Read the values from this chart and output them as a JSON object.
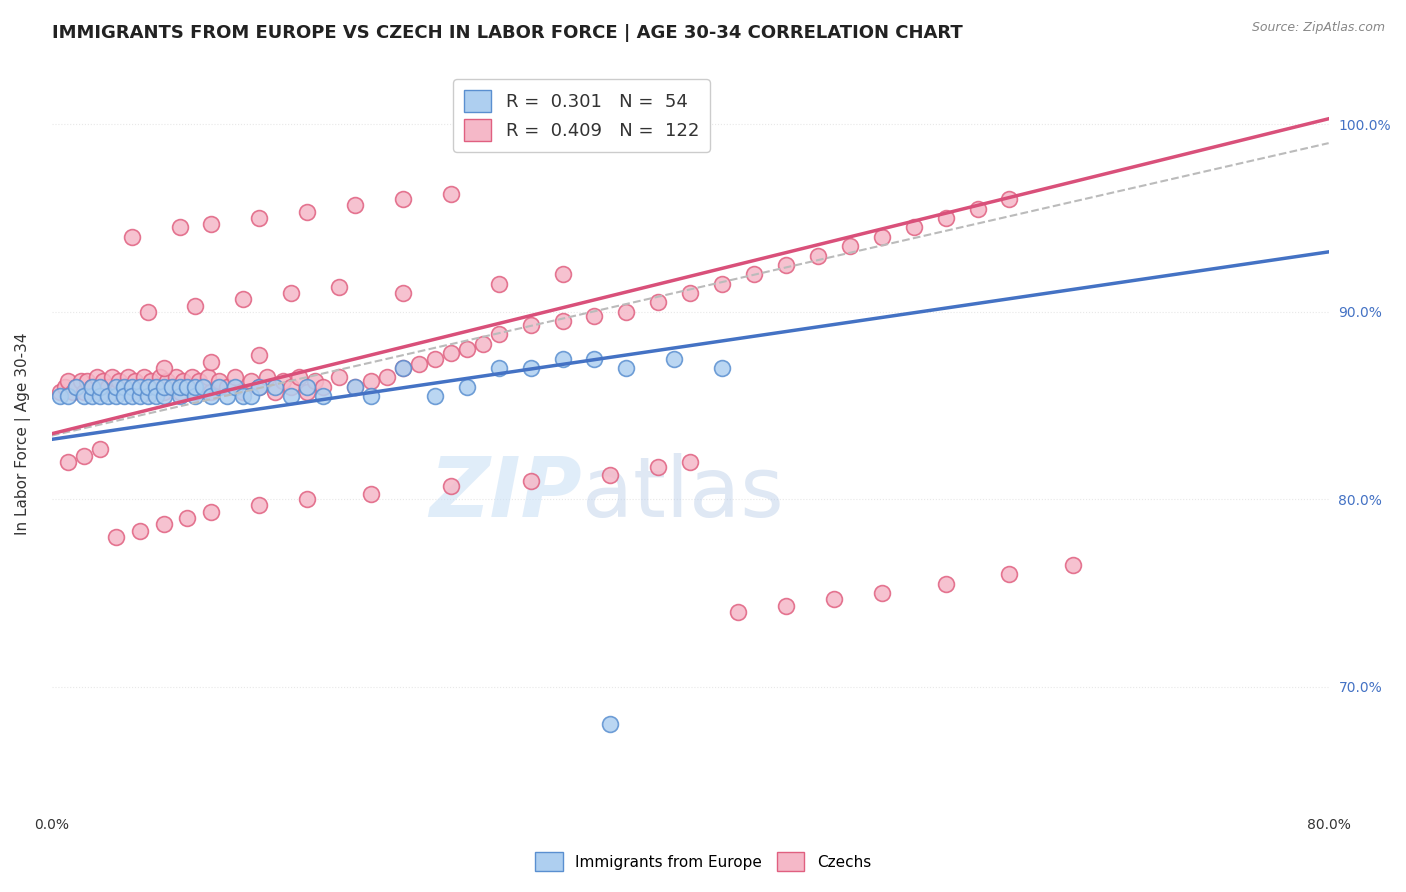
{
  "title": "IMMIGRANTS FROM EUROPE VS CZECH IN LABOR FORCE | AGE 30-34 CORRELATION CHART",
  "source": "Source: ZipAtlas.com",
  "ylabel": "In Labor Force | Age 30-34",
  "xlim": [
    0.0,
    0.8
  ],
  "ylim": [
    0.635,
    1.035
  ],
  "right_yticks": [
    0.7,
    0.8,
    0.9,
    1.0
  ],
  "right_yticklabels": [
    "70.0%",
    "80.0%",
    "90.0%",
    "100.0%"
  ],
  "xticks": [
    0.0,
    0.1,
    0.2,
    0.3,
    0.4,
    0.5,
    0.6,
    0.7,
    0.8
  ],
  "xticklabels": [
    "0.0%",
    "",
    "",
    "",
    "",
    "",
    "",
    "",
    "80.0%"
  ],
  "blue_R": 0.301,
  "blue_N": 54,
  "pink_R": 0.409,
  "pink_N": 122,
  "blue_color": "#aecff0",
  "pink_color": "#f5b8c8",
  "blue_edge_color": "#5a8fd0",
  "pink_edge_color": "#e06080",
  "blue_line_color": "#4472C4",
  "pink_line_color": "#D9507A",
  "background_color": "#ffffff",
  "grid_color": "#e8e8e8",
  "title_fontsize": 13,
  "axis_label_fontsize": 11,
  "tick_fontsize": 10,
  "blue_scatter_x": [
    0.005,
    0.01,
    0.015,
    0.02,
    0.025,
    0.025,
    0.03,
    0.03,
    0.035,
    0.04,
    0.04,
    0.045,
    0.045,
    0.05,
    0.05,
    0.055,
    0.055,
    0.06,
    0.06,
    0.065,
    0.065,
    0.07,
    0.07,
    0.075,
    0.08,
    0.08,
    0.085,
    0.09,
    0.09,
    0.095,
    0.1,
    0.105,
    0.11,
    0.115,
    0.12,
    0.125,
    0.13,
    0.14,
    0.15,
    0.16,
    0.17,
    0.19,
    0.2,
    0.22,
    0.24,
    0.26,
    0.28,
    0.3,
    0.32,
    0.34,
    0.36,
    0.39,
    0.42,
    0.35
  ],
  "blue_scatter_y": [
    0.855,
    0.855,
    0.86,
    0.855,
    0.855,
    0.86,
    0.855,
    0.86,
    0.855,
    0.855,
    0.86,
    0.86,
    0.855,
    0.86,
    0.855,
    0.855,
    0.86,
    0.855,
    0.86,
    0.86,
    0.855,
    0.855,
    0.86,
    0.86,
    0.855,
    0.86,
    0.86,
    0.855,
    0.86,
    0.86,
    0.855,
    0.86,
    0.855,
    0.86,
    0.855,
    0.855,
    0.86,
    0.86,
    0.855,
    0.86,
    0.855,
    0.86,
    0.855,
    0.87,
    0.855,
    0.86,
    0.87,
    0.87,
    0.875,
    0.875,
    0.87,
    0.875,
    0.87,
    0.68
  ],
  "pink_scatter_x": [
    0.005,
    0.008,
    0.01,
    0.013,
    0.015,
    0.018,
    0.02,
    0.022,
    0.025,
    0.028,
    0.03,
    0.032,
    0.035,
    0.038,
    0.04,
    0.042,
    0.045,
    0.048,
    0.05,
    0.052,
    0.055,
    0.058,
    0.06,
    0.062,
    0.065,
    0.068,
    0.07,
    0.072,
    0.075,
    0.078,
    0.08,
    0.082,
    0.085,
    0.088,
    0.09,
    0.092,
    0.095,
    0.098,
    0.1,
    0.105,
    0.11,
    0.115,
    0.12,
    0.125,
    0.13,
    0.135,
    0.14,
    0.145,
    0.15,
    0.155,
    0.16,
    0.165,
    0.17,
    0.18,
    0.19,
    0.2,
    0.21,
    0.22,
    0.23,
    0.24,
    0.25,
    0.26,
    0.27,
    0.28,
    0.3,
    0.32,
    0.34,
    0.36,
    0.38,
    0.4,
    0.42,
    0.44,
    0.46,
    0.48,
    0.5,
    0.52,
    0.54,
    0.56,
    0.58,
    0.6,
    0.05,
    0.08,
    0.1,
    0.13,
    0.16,
    0.19,
    0.22,
    0.25,
    0.06,
    0.09,
    0.12,
    0.15,
    0.18,
    0.07,
    0.1,
    0.13,
    0.22,
    0.28,
    0.32,
    0.04,
    0.055,
    0.07,
    0.085,
    0.1,
    0.13,
    0.16,
    0.2,
    0.25,
    0.3,
    0.35,
    0.38,
    0.4,
    0.43,
    0.46,
    0.49,
    0.52,
    0.56,
    0.6,
    0.64,
    0.01,
    0.02,
    0.03
  ],
  "pink_scatter_y": [
    0.857,
    0.86,
    0.863,
    0.857,
    0.86,
    0.863,
    0.857,
    0.863,
    0.86,
    0.865,
    0.857,
    0.863,
    0.86,
    0.865,
    0.857,
    0.863,
    0.86,
    0.865,
    0.857,
    0.863,
    0.86,
    0.865,
    0.857,
    0.863,
    0.86,
    0.865,
    0.857,
    0.863,
    0.86,
    0.865,
    0.857,
    0.863,
    0.86,
    0.865,
    0.857,
    0.863,
    0.86,
    0.865,
    0.857,
    0.863,
    0.86,
    0.865,
    0.857,
    0.863,
    0.86,
    0.865,
    0.857,
    0.863,
    0.86,
    0.865,
    0.857,
    0.863,
    0.86,
    0.865,
    0.86,
    0.863,
    0.865,
    0.87,
    0.872,
    0.875,
    0.878,
    0.88,
    0.883,
    0.888,
    0.893,
    0.895,
    0.898,
    0.9,
    0.905,
    0.91,
    0.915,
    0.92,
    0.925,
    0.93,
    0.935,
    0.94,
    0.945,
    0.95,
    0.955,
    0.96,
    0.94,
    0.945,
    0.947,
    0.95,
    0.953,
    0.957,
    0.96,
    0.963,
    0.9,
    0.903,
    0.907,
    0.91,
    0.913,
    0.87,
    0.873,
    0.877,
    0.91,
    0.915,
    0.92,
    0.78,
    0.783,
    0.787,
    0.79,
    0.793,
    0.797,
    0.8,
    0.803,
    0.807,
    0.81,
    0.813,
    0.817,
    0.82,
    0.74,
    0.743,
    0.747,
    0.75,
    0.755,
    0.76,
    0.765,
    0.82,
    0.823,
    0.827
  ]
}
